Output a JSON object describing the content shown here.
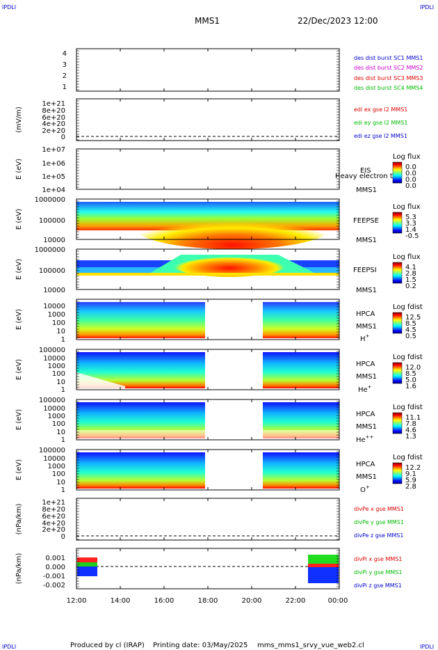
{
  "corner": {
    "tl": "IPDLI",
    "tr": "IPDLI",
    "bl": "IPDLI",
    "br": "IPDLI"
  },
  "header": {
    "title": "MMS1",
    "datetime": "22/Dec/2023 12:00"
  },
  "footer": {
    "produced": "Produced by cl (IRAP)",
    "printing": "Printing date: 03/May/2025",
    "script": "mms_mms1_srvy_vue_web2.cl"
  },
  "chart_data": [
    {
      "id": "p1",
      "type": "line",
      "yticks": [
        "4",
        "3",
        "2",
        "1"
      ],
      "legend": [
        {
          "text": "des dist burst SC1 MMS1",
          "color": "#0000cc"
        },
        {
          "text": "des dist burst SC2 MMS2",
          "color": "#cc00cc"
        },
        {
          "text": "des dist burst SC3 MMS3",
          "color": "#dd0000"
        },
        {
          "text": "des dist burst SC4 MMS4",
          "color": "#00bb00"
        }
      ]
    },
    {
      "id": "p2",
      "type": "line",
      "ylabel": "(mV/m)",
      "yticks": [
        "1e+21",
        "8e+20",
        "6e+20",
        "4e+20",
        "2e+20",
        "0"
      ],
      "legend": [
        {
          "text": "edi ex gse l2 MMS1",
          "color": "#dd0000"
        },
        {
          "text": "edi ey gse l2 MMS1",
          "color": "#00bb00"
        },
        {
          "text": "edi ez gse l2 MMS1",
          "color": "#0000cc"
        }
      ]
    },
    {
      "id": "p3",
      "type": "heatmap",
      "ylabel": "E (eV)",
      "yticks": [
        "1e+07",
        "1e+06",
        "1e+05",
        "1e+04"
      ],
      "label1": "EIS",
      "label2": "MMS1",
      "overlay": "Heavy electron to",
      "cbar_title": "Log flux",
      "cbar_ticks": [
        "0.0",
        "0.0",
        "0.0",
        "0.0"
      ]
    },
    {
      "id": "p4",
      "type": "heatmap",
      "ylabel": "E (eV)",
      "yticks": [
        "1000000",
        "100000",
        "10000"
      ],
      "label1": "FEEPSE",
      "label2": "MMS1",
      "cbar_title": "Log flux",
      "cbar_ticks": [
        "5.3",
        "3.3",
        "1.4",
        "-0.5"
      ]
    },
    {
      "id": "p5",
      "type": "heatmap",
      "ylabel": "E (eV)",
      "yticks": [
        "1000000",
        "100000",
        "10000"
      ],
      "label1": "FEEPSI",
      "label2": "MMS1",
      "cbar_title": "Log flux",
      "cbar_ticks": [
        "4.1",
        "2.8",
        "1.5",
        "0.2"
      ]
    },
    {
      "id": "p6",
      "type": "heatmap",
      "ylabel": "E (eV)",
      "yticks": [
        "10000",
        "1000",
        "100",
        "10",
        "1"
      ],
      "label1": "HPCA",
      "label2": "MMS1",
      "species": "H",
      "sup": "+",
      "cbar_title": "Log fdist",
      "cbar_ticks": [
        "12.5",
        "8.5",
        "4.5",
        "0.5"
      ]
    },
    {
      "id": "p7",
      "type": "heatmap",
      "ylabel": "E (eV)",
      "yticks": [
        "100000",
        "10000",
        "1000",
        "100",
        "10",
        "1"
      ],
      "label1": "HPCA",
      "label2": "MMS1",
      "species": "He",
      "sup": "+",
      "cbar_title": "Log fdist",
      "cbar_ticks": [
        "12.0",
        "8.5",
        "5.0",
        "1.6"
      ]
    },
    {
      "id": "p8",
      "type": "heatmap",
      "ylabel": "E (eV)",
      "yticks": [
        "100000",
        "10000",
        "1000",
        "100",
        "10",
        "1"
      ],
      "label1": "HPCA",
      "label2": "MMS1",
      "species": "He",
      "sup": "++",
      "cbar_title": "Log fdist",
      "cbar_ticks": [
        "11.1",
        "7.8",
        "4.6",
        "1.3"
      ]
    },
    {
      "id": "p9",
      "type": "heatmap",
      "ylabel": "E (eV)",
      "yticks": [
        "100000",
        "10000",
        "1000",
        "100",
        "10",
        "1"
      ],
      "label1": "HPCA",
      "label2": "MMS1",
      "species": "O",
      "sup": "+",
      "cbar_title": "Log fdist",
      "cbar_ticks": [
        "12.2",
        "9.1",
        "5.9",
        "2.8"
      ]
    },
    {
      "id": "p10",
      "type": "line",
      "ylabel": "(nPa/km)",
      "yticks": [
        "1e+21",
        "8e+20",
        "6e+20",
        "4e+20",
        "2e+20",
        "0"
      ],
      "legend": [
        {
          "text": "divPe x gse MMS1",
          "color": "#dd0000"
        },
        {
          "text": "divPe y gse MMS1",
          "color": "#00bb00"
        },
        {
          "text": "divPe z gse MMS1",
          "color": "#0000cc"
        }
      ]
    },
    {
      "id": "p11",
      "type": "line",
      "ylabel": "(nPa/km)",
      "yticks": [
        "0.001",
        "0.000",
        "-0.001",
        "-0.002"
      ],
      "ylim": [
        -0.0025,
        0.0015
      ],
      "legend": [
        {
          "text": "divPi x gse MMS1",
          "color": "#dd0000"
        },
        {
          "text": "divPi y gse MMS1",
          "color": "#00bb00"
        },
        {
          "text": "divPi z gse MMS1",
          "color": "#0000cc"
        }
      ]
    }
  ],
  "xaxis": {
    "ticks": [
      "12:00",
      "14:00",
      "16:00",
      "18:00",
      "20:00",
      "22:00",
      "00:00"
    ]
  }
}
